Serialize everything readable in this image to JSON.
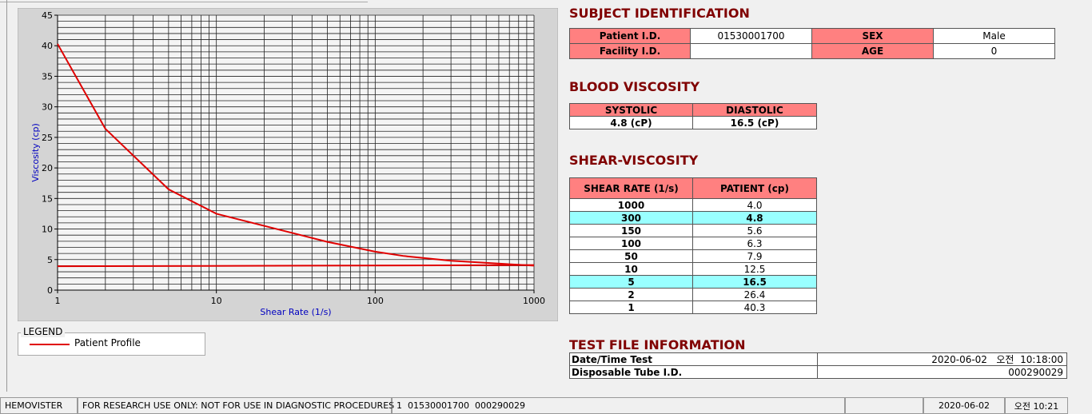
{
  "chart_data": {
    "type": "line",
    "xscale": "log",
    "ylabel": "Viscosity (cp)",
    "xlabel": "Shear Rate (1/s)",
    "xlim": [
      1,
      1000
    ],
    "xticks": [
      1,
      10,
      100,
      1000
    ],
    "ylim": [
      0,
      45
    ],
    "yticks": [
      0,
      5,
      10,
      15,
      20,
      25,
      30,
      35,
      40,
      45
    ],
    "xgrid": [
      1,
      2,
      3,
      4,
      5,
      6,
      7,
      8,
      9,
      10,
      20,
      30,
      40,
      50,
      60,
      70,
      80,
      90,
      100,
      200,
      300,
      400,
      500,
      600,
      700,
      800,
      900,
      1000
    ],
    "ygrid": [
      0,
      1,
      2,
      3,
      4,
      5,
      6,
      7,
      8,
      9,
      10,
      11,
      12,
      13,
      14,
      15,
      16,
      17,
      18,
      19,
      20,
      21,
      22,
      23,
      24,
      25,
      26,
      27,
      28,
      29,
      30,
      31,
      32,
      33,
      34,
      35,
      36,
      37,
      38,
      39,
      40,
      41,
      42,
      43,
      44,
      45
    ],
    "legend_title": "LEGEND",
    "series": [
      {
        "name": "Patient Profile",
        "color": "#e00000",
        "x": [
          1,
          2,
          5,
          10,
          50,
          100,
          150,
          300,
          1000
        ],
        "values": [
          40.3,
          26.4,
          16.5,
          12.5,
          7.9,
          6.3,
          5.6,
          4.8,
          4.0
        ]
      },
      {
        "color": "#e00000",
        "x": [
          1,
          1000
        ],
        "values": [
          3.9,
          4.1
        ]
      }
    ]
  },
  "subject_identification": {
    "title": "SUBJECT IDENTIFICATION",
    "rows": [
      [
        "Patient I.D.",
        "01530001700",
        "SEX",
        "Male"
      ],
      [
        "Facility I.D.",
        null,
        "AGE",
        "0"
      ]
    ]
  },
  "blood_viscosity": {
    "title": "BLOOD VISCOSITY",
    "header": [
      "SYSTOLIC",
      "DIASTOLIC"
    ],
    "row": [
      "4.8 (cP)",
      "16.5 (cP)"
    ]
  },
  "shear_viscosity": {
    "title": "SHEAR-VISCOSITY",
    "header": [
      "SHEAR RATE (1/s)",
      "PATIENT (cp)"
    ],
    "rows": [
      [
        "1000",
        "4.0"
      ],
      [
        "300",
        "4.8"
      ],
      [
        "150",
        "5.6"
      ],
      [
        "100",
        "6.3"
      ],
      [
        "50",
        "7.9"
      ],
      [
        "10",
        "12.5"
      ],
      [
        "5",
        "16.5"
      ],
      [
        "2",
        "26.4"
      ],
      [
        "1",
        "40.3"
      ]
    ],
    "highlighted_rows": [
      1,
      6
    ]
  },
  "test_file_information": {
    "title": "TEST FILE INFORMATION",
    "rows": [
      [
        "Date/Time Test",
        "2020-06-02   오전  10:18:00"
      ],
      [
        "Disposable Tube I.D.",
        "000290029"
      ]
    ]
  },
  "status_bar": [
    "HEMOVISTER",
    "FOR RESEARCH USE ONLY: NOT FOR USE IN DIAGNOSTIC PROCEDURES",
    "1  01530001700  000290029",
    null,
    "2020-06-02",
    "오전 10:21"
  ]
}
